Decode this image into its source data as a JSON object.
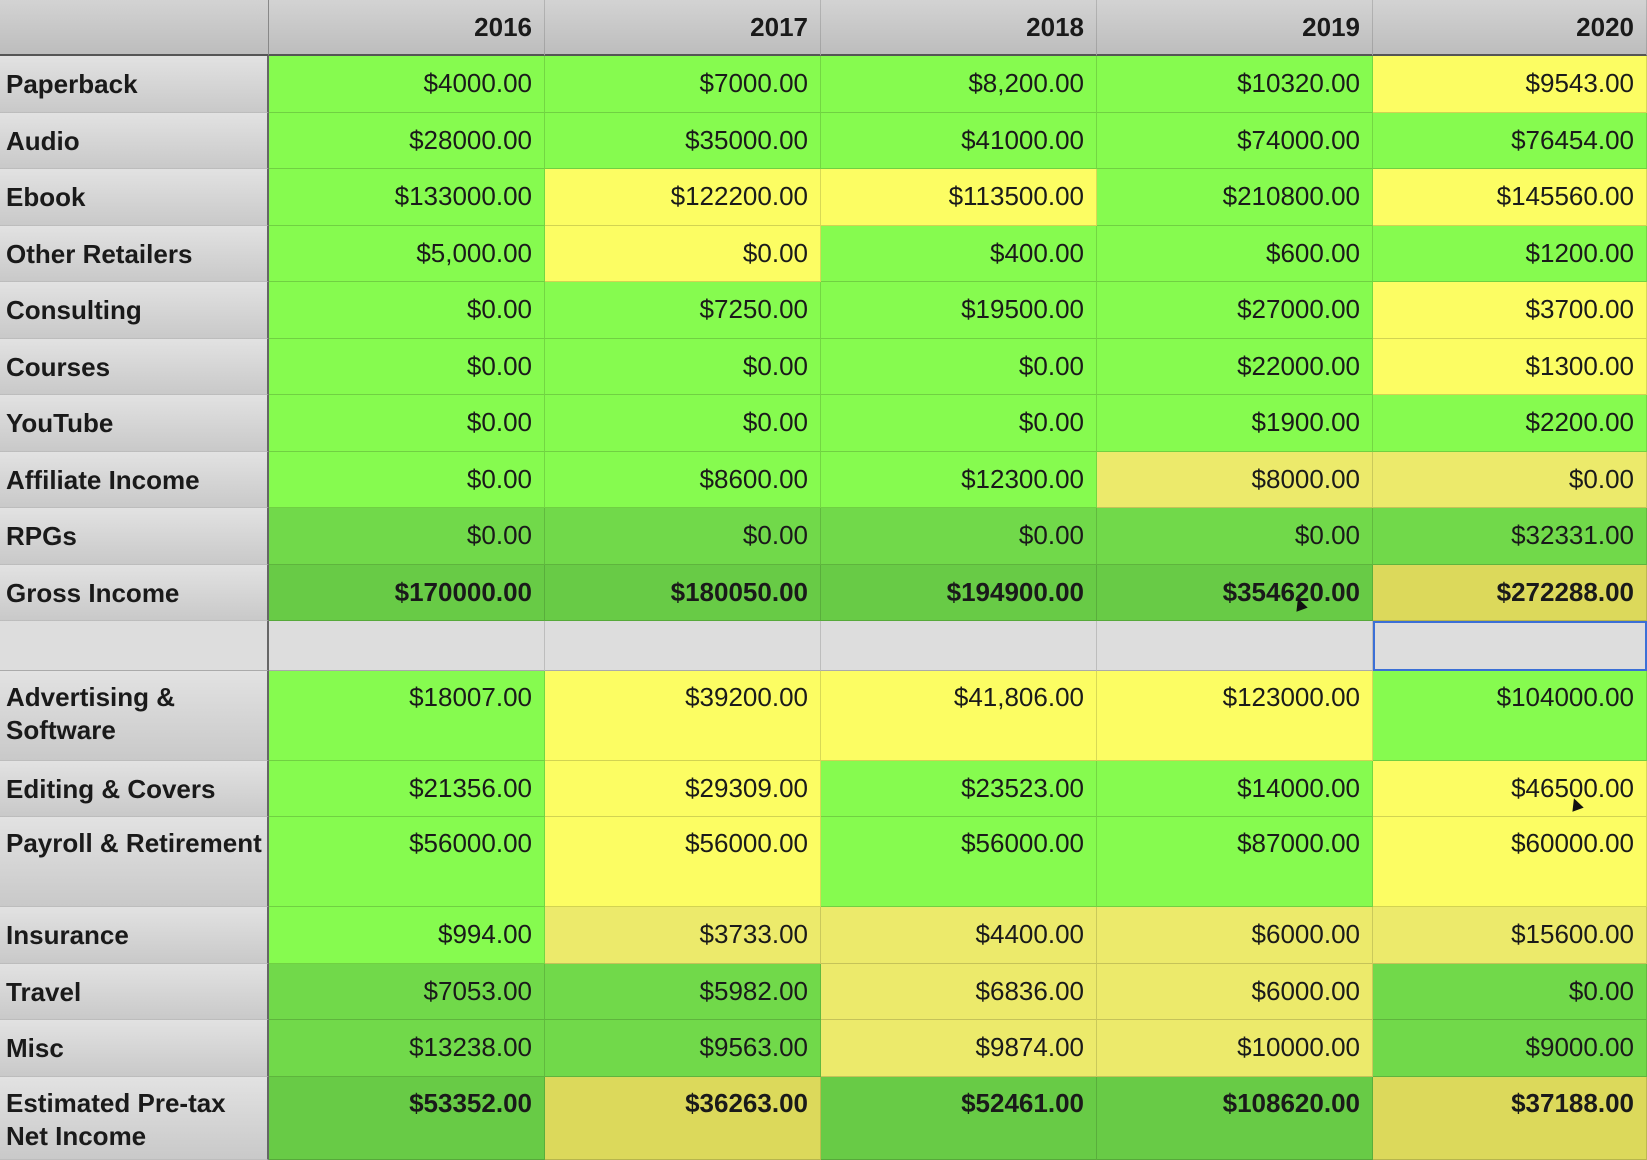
{
  "years": [
    "2016",
    "2017",
    "2018",
    "2019",
    "2020"
  ],
  "rows": [
    {
      "label": "Paperback",
      "values": [
        "$4000.00",
        "$7000.00",
        "$8,200.00",
        "$10320.00",
        "$9543.00"
      ]
    },
    {
      "label": "Audio",
      "values": [
        "$28000.00",
        "$35000.00",
        "$41000.00",
        "$74000.00",
        "$76454.00"
      ]
    },
    {
      "label": "Ebook",
      "values": [
        "$133000.00",
        "$122200.00",
        "$113500.00",
        "$210800.00",
        "$145560.00"
      ]
    },
    {
      "label": "Other Retailers",
      "values": [
        "$5,000.00",
        "$0.00",
        "$400.00",
        "$600.00",
        "$1200.00"
      ]
    },
    {
      "label": "Consulting",
      "values": [
        "$0.00",
        "$7250.00",
        "$19500.00",
        "$27000.00",
        "$3700.00"
      ]
    },
    {
      "label": "Courses",
      "values": [
        "$0.00",
        "$0.00",
        "$0.00",
        "$22000.00",
        "$1300.00"
      ]
    },
    {
      "label": "YouTube",
      "values": [
        "$0.00",
        "$0.00",
        "$0.00",
        "$1900.00",
        "$2200.00"
      ]
    },
    {
      "label": "Affiliate Income",
      "values": [
        "$0.00",
        "$8600.00",
        "$12300.00",
        "$8000.00",
        "$0.00"
      ]
    },
    {
      "label": "RPGs",
      "values": [
        "$0.00",
        "$0.00",
        "$0.00",
        "$0.00",
        "$32331.00"
      ]
    },
    {
      "label": "Gross Income",
      "values": [
        "$170000.00",
        "$180050.00",
        "$194900.00",
        "$354620.00",
        "$272288.00"
      ]
    },
    {
      "label": "Advertising & Software",
      "values": [
        "$18007.00",
        "$39200.00",
        "$41,806.00",
        "$123000.00",
        "$104000.00"
      ]
    },
    {
      "label": "Editing & Covers",
      "values": [
        "$21356.00",
        "$29309.00",
        "$23523.00",
        "$14000.00",
        "$46500.00"
      ]
    },
    {
      "label": "Payroll & Retirement",
      "values": [
        "$56000.00",
        "$56000.00",
        "$56000.00",
        "$87000.00",
        "$60000.00"
      ]
    },
    {
      "label": "Insurance",
      "values": [
        "$994.00",
        "$3733.00",
        "$4400.00",
        "$6000.00",
        "$15600.00"
      ]
    },
    {
      "label": "Travel",
      "values": [
        "$7053.00",
        "$5982.00",
        "$6836.00",
        "$6000.00",
        "$0.00"
      ]
    },
    {
      "label": "Misc",
      "values": [
        "$13238.00",
        "$9563.00",
        "$9874.00",
        "$10000.00",
        "$9000.00"
      ]
    },
    {
      "label": "Estimated Pre-tax Net Income",
      "values": [
        "$53352.00",
        "$36263.00",
        "$52461.00",
        "$108620.00",
        "$37188.00"
      ]
    }
  ],
  "colors": {
    "green": "#86fb4f",
    "yellow": "#fcfd63",
    "header_gray": "#c8c8c8"
  }
}
